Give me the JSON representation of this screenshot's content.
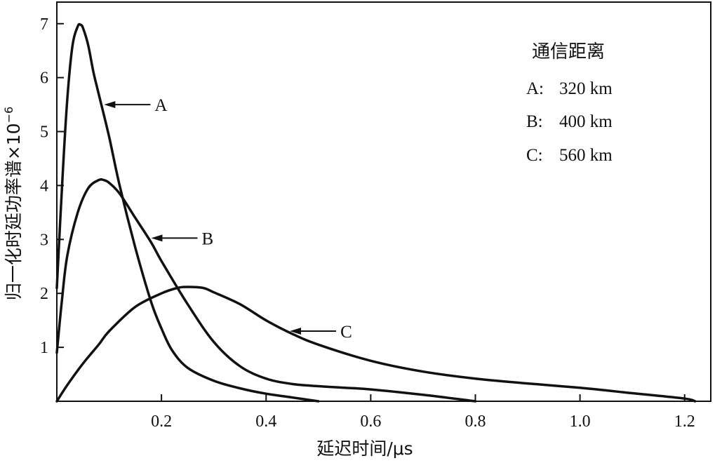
{
  "chart_data": {
    "type": "line",
    "title": "",
    "xlabel": "延迟时间/μs",
    "ylabel": "归一化时延功率谱×10",
    "ylabel_exponent": "−6",
    "xlim": [
      0,
      1.25
    ],
    "ylim": [
      0,
      7.4
    ],
    "x_ticks": [
      {
        "value": 0.2,
        "label": "0.2"
      },
      {
        "value": 0.4,
        "label": "0.4"
      },
      {
        "value": 0.6,
        "label": "0.6"
      },
      {
        "value": 0.8,
        "label": "0.8"
      },
      {
        "value": 1.0,
        "label": "1.0"
      },
      {
        "value": 1.2,
        "label": "1.2"
      }
    ],
    "y_ticks": [
      {
        "value": 1,
        "label": "1"
      },
      {
        "value": 2,
        "label": "2"
      },
      {
        "value": 3,
        "label": "3"
      },
      {
        "value": 4,
        "label": "4"
      },
      {
        "value": 5,
        "label": "5"
      },
      {
        "value": 6,
        "label": "6"
      },
      {
        "value": 7,
        "label": "7"
      }
    ],
    "grid": false,
    "legend": {
      "placement": "top-right",
      "title": "通信距离",
      "entries": [
        {
          "letter": "A:",
          "value": "320 km"
        },
        {
          "letter": "B:",
          "value": "400 km"
        },
        {
          "letter": "C:",
          "value": "560 km"
        }
      ]
    },
    "series": [
      {
        "name": "A",
        "x": [
          0.0,
          0.01,
          0.02,
          0.03,
          0.04,
          0.045,
          0.05,
          0.06,
          0.07,
          0.08,
          0.1,
          0.12,
          0.15,
          0.18,
          0.2,
          0.22,
          0.25,
          0.3,
          0.35,
          0.4,
          0.45,
          0.5
        ],
        "y": [
          2.1,
          4.0,
          5.6,
          6.6,
          6.95,
          6.98,
          6.92,
          6.6,
          6.1,
          5.7,
          4.9,
          4.0,
          2.85,
          1.85,
          1.35,
          0.95,
          0.62,
          0.38,
          0.24,
          0.14,
          0.07,
          0.0
        ]
      },
      {
        "name": "B",
        "x": [
          0.0,
          0.01,
          0.02,
          0.04,
          0.06,
          0.08,
          0.09,
          0.1,
          0.12,
          0.15,
          0.18,
          0.2,
          0.25,
          0.3,
          0.35,
          0.4,
          0.45,
          0.5,
          0.55,
          0.6,
          0.7,
          0.8
        ],
        "y": [
          0.9,
          1.9,
          2.7,
          3.5,
          3.95,
          4.1,
          4.1,
          4.05,
          3.85,
          3.4,
          2.95,
          2.6,
          1.8,
          1.1,
          0.65,
          0.42,
          0.32,
          0.28,
          0.25,
          0.22,
          0.12,
          0.0
        ]
      },
      {
        "name": "C",
        "x": [
          0.0,
          0.02,
          0.05,
          0.08,
          0.1,
          0.15,
          0.2,
          0.23,
          0.25,
          0.28,
          0.3,
          0.35,
          0.4,
          0.45,
          0.5,
          0.6,
          0.7,
          0.8,
          0.9,
          1.0,
          1.1,
          1.2,
          1.22
        ],
        "y": [
          0.0,
          0.3,
          0.7,
          1.05,
          1.3,
          1.75,
          2.0,
          2.1,
          2.12,
          2.1,
          2.02,
          1.8,
          1.5,
          1.25,
          1.05,
          0.75,
          0.55,
          0.42,
          0.33,
          0.25,
          0.15,
          0.05,
          0.0
        ]
      }
    ],
    "annotations": [
      {
        "label": "A",
        "series": "A",
        "at_x": 0.085
      },
      {
        "label": "B",
        "series": "B",
        "at_x": 0.175
      },
      {
        "label": "C",
        "series": "C",
        "at_x": 0.44
      }
    ]
  }
}
